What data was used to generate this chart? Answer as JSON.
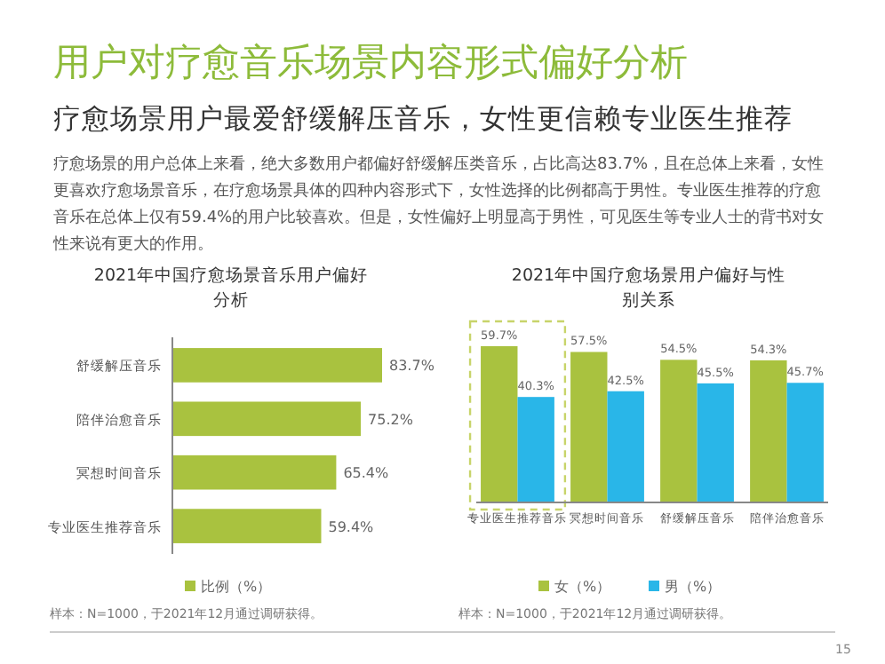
{
  "chart_data": [
    {
      "type": "other",
      "title": "用户对疗愈音乐场景内容形式偏好分析",
      "subtitle": "疗愈场景用户最爱舒缓解压音乐，女性更信赖专业医生推荐",
      "annotations": [
        "疗愈场景的用户总体上来看，绝大多数用户都偏好舒缓解压类音乐，占比高达83.7%，且在总体上来看，女性更喜欢疗愈场景音乐，在疗愈场景具体的四种内容形式下，女性选择的比例都高于男性。专业医生推荐的疗愈音乐在总体上仅有59.4%的用户比较喜欢。但是，女性偏好上明显高于男性，可见医生等专业人士的背书对女性来说有更大的作用。",
        "15"
      ]
    },
    {
      "type": "bar",
      "orientation": "horizontal",
      "title": "2021年中国疗愈场景音乐用户偏好分析",
      "categories": [
        "舒缓解压音乐",
        "陪伴治愈音乐",
        "冥想时间音乐",
        "专业医生推荐音乐"
      ],
      "series": [
        {
          "name": "比例（%）",
          "color": "#a9c23f",
          "values": [
            83.7,
            75.2,
            65.4,
            59.4
          ],
          "value_labels": [
            "83.7%",
            "75.2%",
            "65.4%",
            "59.4%"
          ]
        }
      ],
      "legend": "bottom",
      "annotations": [
        "样本：N=1000，于2021年12月通过调研获得。"
      ]
    },
    {
      "type": "bar",
      "title": "2021年中国疗愈场景用户偏好与性别关系",
      "categories": [
        "专业医生推荐音乐",
        "冥想时间音乐",
        "舒缓解压音乐",
        "陪伴治愈音乐"
      ],
      "series": [
        {
          "name": "女（%）",
          "color": "#a9c23f",
          "values": [
            59.7,
            57.5,
            54.5,
            54.3
          ],
          "value_labels": [
            "59.7%",
            "57.5%",
            "54.5%",
            "54.3%"
          ]
        },
        {
          "name": "男（%）",
          "color": "#29b6e8",
          "values": [
            40.3,
            42.5,
            45.5,
            45.7
          ],
          "value_labels": [
            "40.3%",
            "42.5%",
            "45.5%",
            "45.7%"
          ]
        }
      ],
      "legend": "bottom",
      "annotations": [
        "样本：N=1000，于2021年12月通过调研获得。"
      ]
    }
  ]
}
